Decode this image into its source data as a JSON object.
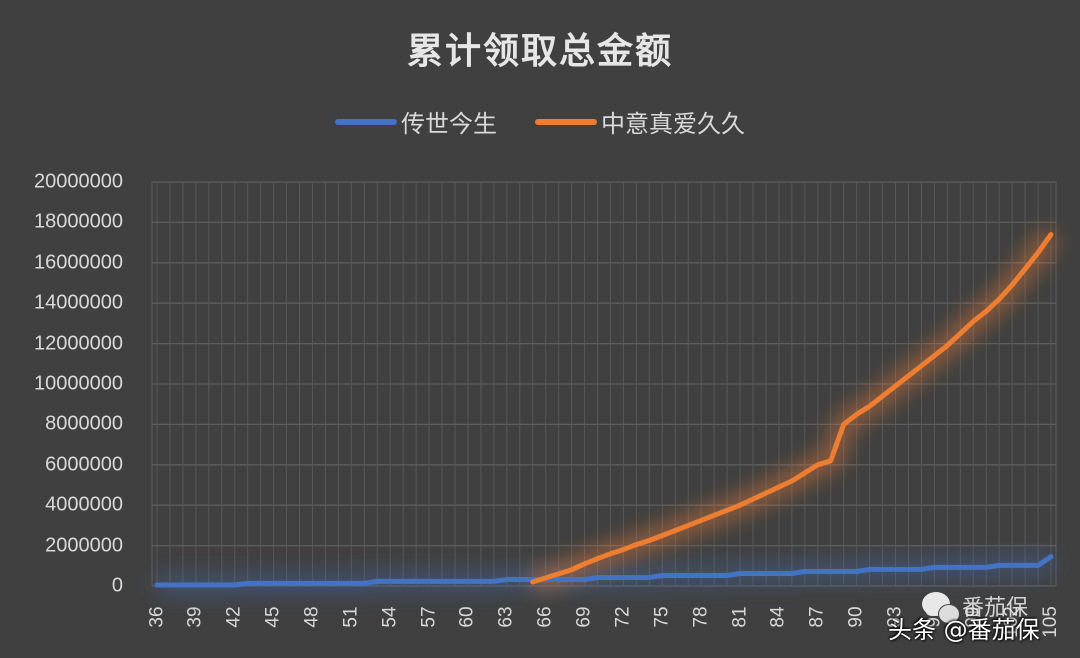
{
  "chart_data": {
    "type": "line",
    "title": "累计领取总金额",
    "xlabel": "",
    "ylabel": "",
    "ylim": [
      0,
      20000000
    ],
    "yticks": [
      0,
      2000000,
      4000000,
      6000000,
      8000000,
      10000000,
      12000000,
      14000000,
      16000000,
      18000000,
      20000000
    ],
    "ytick_labels": [
      "0",
      "2000000",
      "4000000",
      "6000000",
      "8000000",
      "10000000",
      "12000000",
      "14000000",
      "16000000",
      "18000000",
      "20000000"
    ],
    "xtick_labels": [
      "36",
      "39",
      "42",
      "45",
      "48",
      "51",
      "54",
      "57",
      "60",
      "63",
      "66",
      "69",
      "72",
      "75",
      "78",
      "81",
      "84",
      "87",
      "90",
      "93",
      "96",
      "99",
      "102",
      "105"
    ],
    "grid": true,
    "legend_position": "top",
    "x": [
      36,
      37,
      38,
      39,
      40,
      41,
      42,
      43,
      44,
      45,
      46,
      47,
      48,
      49,
      50,
      51,
      52,
      53,
      54,
      55,
      56,
      57,
      58,
      59,
      60,
      61,
      62,
      63,
      64,
      65,
      66,
      67,
      68,
      69,
      70,
      71,
      72,
      73,
      74,
      75,
      76,
      77,
      78,
      79,
      80,
      81,
      82,
      83,
      84,
      85,
      86,
      87,
      88,
      89,
      90,
      91,
      92,
      93,
      94,
      95,
      96,
      97,
      98,
      99,
      100,
      101,
      102,
      103,
      104,
      105
    ],
    "series": [
      {
        "name": "传世今生",
        "color": "#4472c4",
        "values": [
          50000,
          50000,
          50000,
          50000,
          50000,
          50000,
          50000,
          130000,
          130000,
          130000,
          130000,
          130000,
          130000,
          130000,
          130000,
          130000,
          130000,
          230000,
          230000,
          230000,
          230000,
          230000,
          230000,
          230000,
          230000,
          230000,
          230000,
          320000,
          320000,
          320000,
          320000,
          320000,
          320000,
          320000,
          420000,
          420000,
          420000,
          420000,
          420000,
          520000,
          520000,
          520000,
          520000,
          520000,
          520000,
          620000,
          620000,
          620000,
          620000,
          620000,
          720000,
          720000,
          720000,
          720000,
          720000,
          820000,
          820000,
          820000,
          820000,
          820000,
          920000,
          920000,
          920000,
          920000,
          920000,
          1020000,
          1020000,
          1020000,
          1020000,
          1450000
        ]
      },
      {
        "name": "中意真爱久久",
        "color": "#ed7d31",
        "values": [
          null,
          null,
          null,
          null,
          null,
          null,
          null,
          null,
          null,
          null,
          null,
          null,
          null,
          null,
          null,
          null,
          null,
          null,
          null,
          null,
          null,
          null,
          null,
          null,
          null,
          null,
          null,
          null,
          null,
          200000,
          400000,
          600000,
          800000,
          1100000,
          1350000,
          1600000,
          1800000,
          2050000,
          2250000,
          2500000,
          2750000,
          3000000,
          3250000,
          3500000,
          3750000,
          4000000,
          4300000,
          4600000,
          4900000,
          5200000,
          5600000,
          6000000,
          6200000,
          8000000,
          8500000,
          8900000,
          9400000,
          9900000,
          10400000,
          10900000,
          11400000,
          11900000,
          12500000,
          13100000,
          13600000,
          14200000,
          14900000,
          15700000,
          16500000,
          17400000
        ]
      }
    ]
  },
  "watermark": {
    "text": "头条 @番茄保",
    "secondary": "番茄保"
  }
}
